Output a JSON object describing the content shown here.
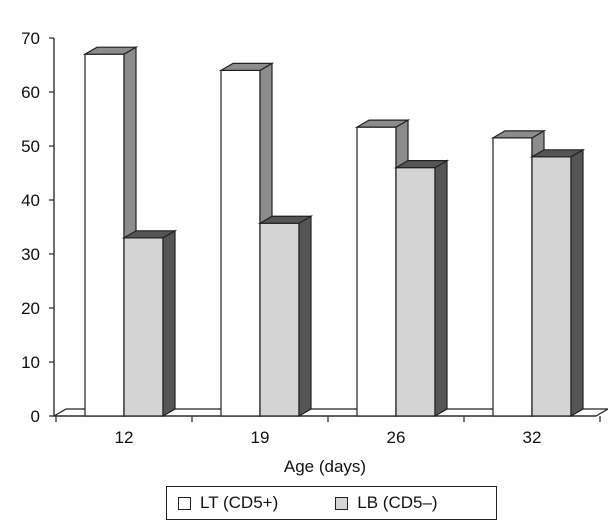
{
  "chart_data": {
    "type": "bar",
    "style": "3d-clustered",
    "categories": [
      "12",
      "19",
      "26",
      "32"
    ],
    "series": [
      {
        "name": "LT (CD5+)",
        "values": [
          67,
          64,
          53.5,
          51.5
        ],
        "color": "#ffffff",
        "side_color": "#8c8c8c"
      },
      {
        "name": "LB (CD5–)",
        "values": [
          33,
          35.7,
          46,
          48
        ],
        "color": "#d4d4d4",
        "side_color": "#555555"
      }
    ],
    "xlabel": "Age (days)",
    "ylabel": "",
    "ylim": [
      0,
      70
    ],
    "yticks": [
      "0",
      "10",
      "20",
      "30",
      "40",
      "50",
      "60",
      "70"
    ],
    "grid": false,
    "legend_position": "bottom"
  }
}
